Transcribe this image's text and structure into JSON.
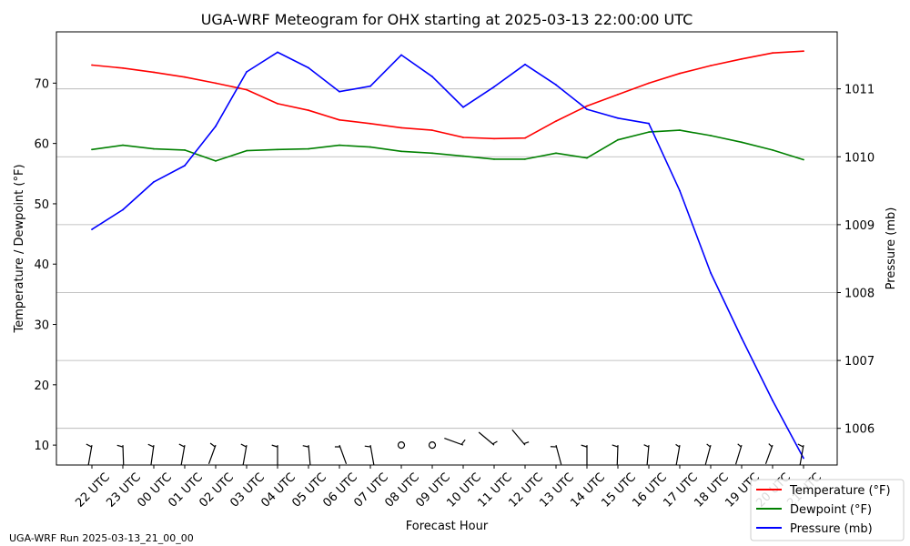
{
  "chart_data": {
    "type": "line",
    "title": "UGA-WRF Meteogram for OHX starting at 2025-03-13 22:00:00 UTC",
    "xlabel": "Forecast Hour",
    "ylabel_left": "Temperature / Dewpoint (°F)",
    "ylabel_right": "Pressure (mb)",
    "categories": [
      "22 UTC",
      "23 UTC",
      "00 UTC",
      "01 UTC",
      "02 UTC",
      "03 UTC",
      "04 UTC",
      "05 UTC",
      "06 UTC",
      "07 UTC",
      "08 UTC",
      "09 UTC",
      "10 UTC",
      "11 UTC",
      "12 UTC",
      "13 UTC",
      "14 UTC",
      "15 UTC",
      "16 UTC",
      "17 UTC",
      "18 UTC",
      "19 UTC",
      "20 UTC",
      "21 UTC"
    ],
    "ylim_left": [
      6.7,
      78.5
    ],
    "ylim_right": [
      1005.46,
      1011.84
    ],
    "yticks_left": [
      10,
      20,
      30,
      40,
      50,
      60,
      70
    ],
    "yticks_right": [
      1006,
      1007,
      1008,
      1009,
      1010,
      1011
    ],
    "grid": "horizontal, right axis",
    "legend_position": "lower-right",
    "series": [
      {
        "name": "Temperature (°F)",
        "axis": "left",
        "color": "#ff0000",
        "values": [
          73.0,
          72.5,
          71.8,
          71.0,
          70.0,
          68.9,
          66.6,
          65.5,
          63.9,
          63.3,
          62.6,
          62.2,
          61.0,
          60.8,
          60.9,
          63.7,
          66.2,
          68.1,
          70.0,
          71.6,
          72.9,
          74.0,
          75.0,
          75.3
        ]
      },
      {
        "name": "Dewpoint (°F)",
        "axis": "left",
        "color": "#008000",
        "values": [
          59.0,
          59.7,
          59.1,
          58.9,
          57.1,
          58.8,
          59.0,
          59.1,
          59.7,
          59.4,
          58.7,
          58.4,
          57.9,
          57.4,
          57.4,
          58.4,
          57.6,
          60.6,
          61.9,
          62.2,
          61.3,
          60.2,
          58.9,
          57.3
        ]
      },
      {
        "name": "Pressure (mb)",
        "axis": "right",
        "color": "#0000ff",
        "values": [
          1008.93,
          1009.22,
          1009.63,
          1009.87,
          1010.45,
          1011.25,
          1011.54,
          1011.31,
          1010.96,
          1011.04,
          1011.5,
          1011.18,
          1010.73,
          1011.03,
          1011.36,
          1011.06,
          1010.7,
          1010.57,
          1010.49,
          1009.5,
          1008.29,
          1007.33,
          1006.41,
          1005.56
        ]
      }
    ],
    "wind_barbs": {
      "y_value": 10,
      "shape": [
        "barb",
        "barb",
        "barb",
        "barb",
        "barb",
        "barb",
        "barb",
        "barb",
        "barb",
        "barb",
        "calm",
        "calm",
        "barb",
        "barb",
        "barb",
        "barb",
        "barb",
        "barb",
        "barb",
        "barb",
        "barb",
        "barb",
        "barb",
        "barb"
      ],
      "direction_deg": [
        190,
        178,
        188,
        190,
        200,
        190,
        180,
        175,
        160,
        170,
        0,
        0,
        290,
        310,
        320,
        165,
        180,
        182,
        185,
        190,
        195,
        197,
        200,
        190
      ],
      "speed_kt": [
        7,
        7,
        7,
        7,
        7,
        7,
        7,
        7,
        6,
        7,
        0,
        0,
        7,
        6,
        6,
        7,
        7,
        7,
        6,
        5,
        5,
        5,
        5,
        7
      ]
    }
  },
  "legend": [
    {
      "label": "Temperature (°F)",
      "color": "#ff0000"
    },
    {
      "label": "Dewpoint (°F)",
      "color": "#008000"
    },
    {
      "label": "Pressure (mb)",
      "color": "#0000ff"
    }
  ],
  "footer": "UGA-WRF Run 2025-03-13_21_00_00"
}
